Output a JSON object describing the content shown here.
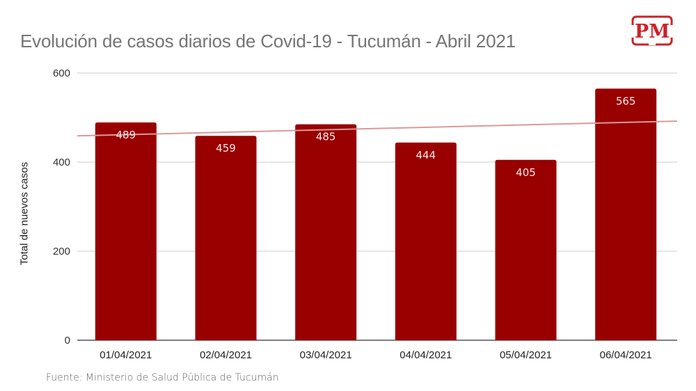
{
  "chart_data": {
    "type": "bar",
    "title": "Evolución de casos diarios de Covid-19 - Tucumán - Abril 2021",
    "xlabel": "",
    "ylabel": "Total de nuevos casos",
    "categories": [
      "01/04/2021",
      "02/04/2021",
      "03/04/2021",
      "04/04/2021",
      "05/04/2021",
      "06/04/2021"
    ],
    "values": [
      489,
      459,
      485,
      444,
      405,
      565
    ],
    "data_labels": [
      "489",
      "459",
      "485",
      "444",
      "405",
      "565"
    ],
    "ylim": [
      0,
      600
    ],
    "yticks": [
      0,
      200,
      400,
      600
    ],
    "grid": true,
    "legend": "none",
    "trendline": {
      "type": "linear",
      "start": 459,
      "end": 492
    },
    "colors": {
      "bar": "#990000",
      "trendline": "#d99a9a",
      "grid": "#cccccc",
      "axis": "#333333",
      "title": "#757575"
    }
  },
  "header": {
    "title": "Evolución de casos diarios de Covid-19 - Tucumán - Abril 2021",
    "logo_text": "PM"
  },
  "footer": {
    "source": "Fuente: Ministerio de Salud Pública de Tucumán"
  }
}
